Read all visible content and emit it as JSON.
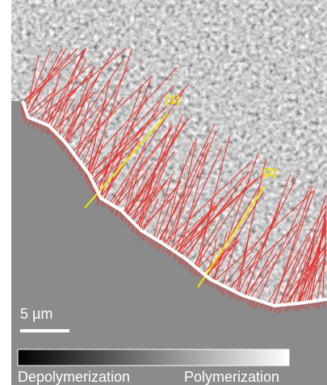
{
  "labels": {
    "marker_1": "(1)",
    "marker_2": "(2)"
  },
  "scale_bar": "5 µm",
  "colorbar": {
    "low_label": "Depolymerization",
    "high_label": "Polymerization"
  }
}
